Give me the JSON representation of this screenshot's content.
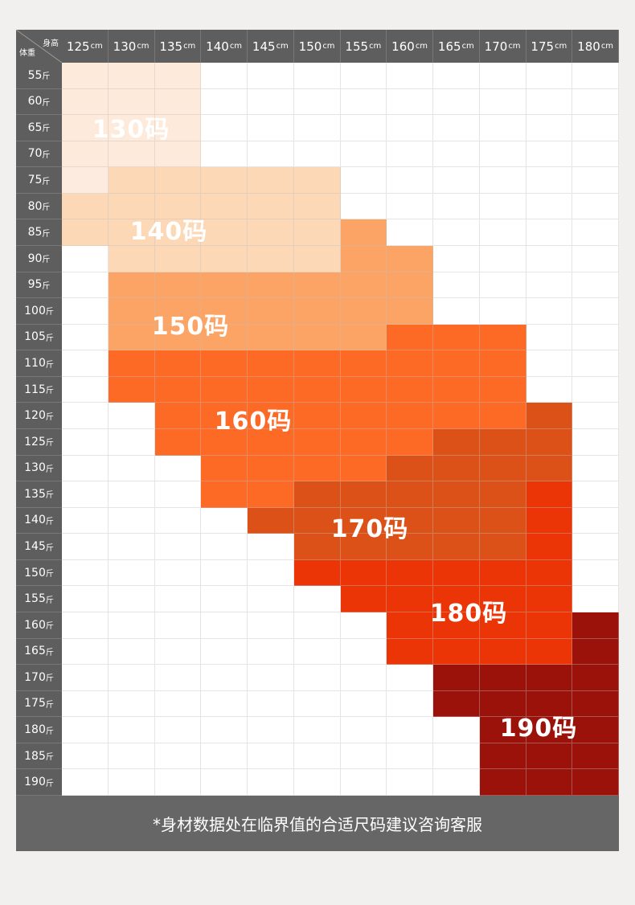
{
  "chart_data": {
    "type": "heatmap",
    "title": "",
    "corner": {
      "x_header": "身高",
      "y_header": "体重"
    },
    "x_unit": "cm",
    "y_unit": "斤",
    "x": [
      "125",
      "130",
      "135",
      "140",
      "145",
      "150",
      "155",
      "160",
      "165",
      "170",
      "175",
      "180"
    ],
    "y": [
      "55",
      "60",
      "65",
      "70",
      "75",
      "80",
      "85",
      "90",
      "95",
      "100",
      "105",
      "110",
      "115",
      "120",
      "125",
      "130",
      "135",
      "140",
      "145",
      "150",
      "155",
      "160",
      "165",
      "170",
      "175",
      "180",
      "185",
      "190"
    ],
    "sizes": {
      "130": {
        "label": "130码",
        "color": "#fdeadb"
      },
      "140": {
        "label": "140码",
        "color": "#fdd8b6"
      },
      "150": {
        "label": "150码",
        "color": "#fca465"
      },
      "160": {
        "label": "160码",
        "color": "#fc6a26"
      },
      "170": {
        "label": "170码",
        "color": "#dc5118"
      },
      "180": {
        "label": "180码",
        "color": "#ec3506"
      },
      "190": {
        "label": "190码",
        "color": "#9b120b"
      }
    },
    "grid": [
      [
        "130",
        "130",
        "130",
        "",
        "",
        "",
        "",
        "",
        "",
        "",
        "",
        ""
      ],
      [
        "130",
        "130",
        "130",
        "",
        "",
        "",
        "",
        "",
        "",
        "",
        "",
        ""
      ],
      [
        "130",
        "130",
        "130",
        "",
        "",
        "",
        "",
        "",
        "",
        "",
        "",
        ""
      ],
      [
        "130",
        "130",
        "130",
        "",
        "",
        "",
        "",
        "",
        "",
        "",
        "",
        ""
      ],
      [
        "130",
        "140",
        "140",
        "140",
        "140",
        "140",
        "",
        "",
        "",
        "",
        "",
        ""
      ],
      [
        "140",
        "140",
        "140",
        "140",
        "140",
        "140",
        "",
        "",
        "",
        "",
        "",
        ""
      ],
      [
        "140",
        "140",
        "140",
        "140",
        "140",
        "140",
        "150",
        "",
        "",
        "",
        "",
        ""
      ],
      [
        "",
        "140",
        "140",
        "140",
        "140",
        "140",
        "150",
        "150",
        "",
        "",
        "",
        ""
      ],
      [
        "",
        "150",
        "150",
        "150",
        "150",
        "150",
        "150",
        "150",
        "",
        "",
        "",
        ""
      ],
      [
        "",
        "150",
        "150",
        "150",
        "150",
        "150",
        "150",
        "150",
        "",
        "",
        "",
        ""
      ],
      [
        "",
        "150",
        "150",
        "150",
        "150",
        "150",
        "150",
        "160",
        "160",
        "160",
        "",
        ""
      ],
      [
        "",
        "160",
        "160",
        "160",
        "160",
        "160",
        "160",
        "160",
        "160",
        "160",
        "",
        ""
      ],
      [
        "",
        "160",
        "160",
        "160",
        "160",
        "160",
        "160",
        "160",
        "160",
        "160",
        "",
        ""
      ],
      [
        "",
        "",
        "160",
        "160",
        "160",
        "160",
        "160",
        "160",
        "160",
        "160",
        "170",
        ""
      ],
      [
        "",
        "",
        "160",
        "160",
        "160",
        "160",
        "160",
        "160",
        "170",
        "170",
        "170",
        ""
      ],
      [
        "",
        "",
        "",
        "160",
        "160",
        "160",
        "160",
        "170",
        "170",
        "170",
        "170",
        ""
      ],
      [
        "",
        "",
        "",
        "160",
        "160",
        "170",
        "170",
        "170",
        "170",
        "170",
        "180",
        ""
      ],
      [
        "",
        "",
        "",
        "",
        "170",
        "170",
        "170",
        "170",
        "170",
        "170",
        "180",
        ""
      ],
      [
        "",
        "",
        "",
        "",
        "",
        "170",
        "170",
        "170",
        "170",
        "170",
        "180",
        ""
      ],
      [
        "",
        "",
        "",
        "",
        "",
        "180",
        "180",
        "180",
        "180",
        "180",
        "180",
        ""
      ],
      [
        "",
        "",
        "",
        "",
        "",
        "",
        "180",
        "180",
        "180",
        "180",
        "180",
        ""
      ],
      [
        "",
        "",
        "",
        "",
        "",
        "",
        "",
        "180",
        "180",
        "180",
        "180",
        "190"
      ],
      [
        "",
        "",
        "",
        "",
        "",
        "",
        "",
        "180",
        "180",
        "180",
        "180",
        "190"
      ],
      [
        "",
        "",
        "",
        "",
        "",
        "",
        "",
        "",
        "190",
        "190",
        "190",
        "190"
      ],
      [
        "",
        "",
        "",
        "",
        "",
        "",
        "",
        "",
        "190",
        "190",
        "190",
        "190"
      ],
      [
        "",
        "",
        "",
        "",
        "",
        "",
        "",
        "",
        "",
        "190",
        "190",
        "190"
      ],
      [
        "",
        "",
        "",
        "",
        "",
        "",
        "",
        "",
        "",
        "190",
        "190",
        "190"
      ],
      [
        "",
        "",
        "",
        "",
        "",
        "",
        "",
        "",
        "",
        "190",
        "190",
        "190"
      ]
    ]
  },
  "footer": {
    "note": "*身材数据处在临界值的合适尺码建议咨询客服"
  }
}
